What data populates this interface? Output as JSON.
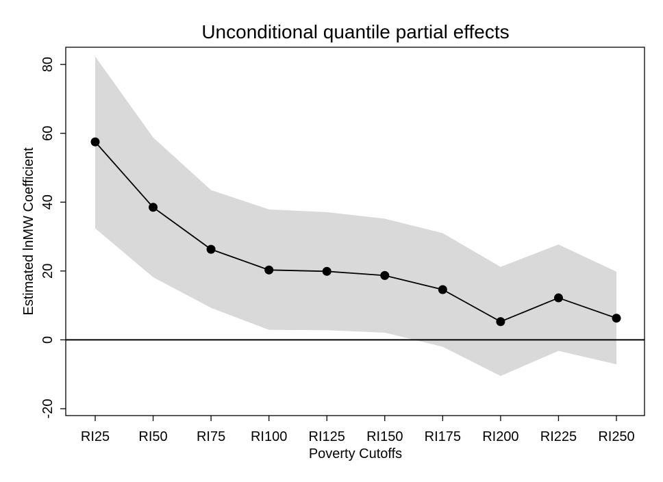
{
  "chart_data": {
    "type": "line",
    "title": "Unconditional quantile partial effects",
    "xlabel": "Poverty Cutoffs",
    "ylabel": "Estimated lnMW Coefficient",
    "categories": [
      "RI25",
      "RI50",
      "RI75",
      "RI100",
      "RI125",
      "RI150",
      "RI175",
      "RI200",
      "RI225",
      "RI250"
    ],
    "series": [
      {
        "values": [
          57.5,
          38.5,
          26.3,
          20.3,
          19.9,
          18.7,
          14.6,
          5.3,
          12.2,
          6.3
        ],
        "ci_upper": [
          82.3,
          58.8,
          43.5,
          37.9,
          37.1,
          35.2,
          31.0,
          21.2,
          27.7,
          19.8
        ],
        "ci_lower": [
          32.4,
          18.2,
          9.3,
          2.9,
          2.8,
          2.1,
          -2.0,
          -10.5,
          -3.2,
          -7.1
        ]
      }
    ],
    "yticks": [
      -20,
      0,
      20,
      40,
      60,
      80
    ],
    "ylim": [
      -22,
      85
    ],
    "reference_line": 0,
    "colors": {
      "band": "#d9d9d9",
      "line": "#000000",
      "marker": "#000000"
    },
    "grid": false,
    "legend": "none"
  }
}
